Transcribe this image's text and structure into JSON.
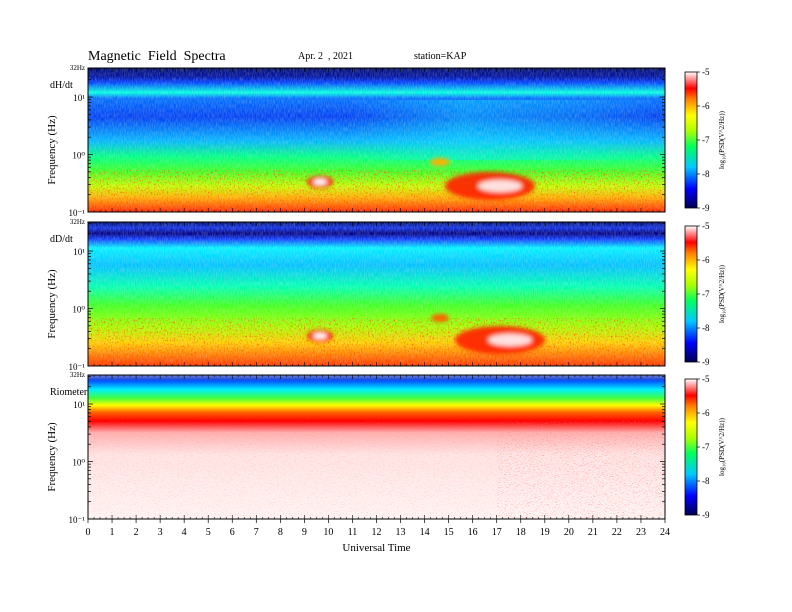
{
  "header": {
    "title": "Magnetic  Field  Spectra",
    "date": "Apr. 2  , 2021",
    "station": "station=KAP"
  },
  "chart_data": [
    {
      "type": "heatmap",
      "label": "dH/dt",
      "top_label": "32Hz",
      "ylabel": "Frequency  (Hz)",
      "xlabel": "",
      "xlim": [
        0,
        24
      ],
      "ylim": [
        0.1,
        32
      ],
      "ytick_labels": [
        "10⁻¹",
        "10⁰",
        "10¹"
      ],
      "colorbar": {
        "label": "log₁₀(PSD(V^2/Hz))",
        "range": [
          -9,
          -5
        ],
        "tick_labels": [
          "-5",
          "-6",
          "-7",
          "-8",
          "-9"
        ]
      }
    },
    {
      "type": "heatmap",
      "label": "dD/dt",
      "top_label": "32Hz",
      "ylabel": "Frequency  (Hz)",
      "xlabel": "",
      "xlim": [
        0,
        24
      ],
      "ylim": [
        0.1,
        32
      ],
      "ytick_labels": [
        "10⁻¹",
        "10⁰",
        "10¹"
      ],
      "colorbar": {
        "label": "log₁₀(PSD(V^2/Hz))",
        "range": [
          -9,
          -5
        ],
        "tick_labels": [
          "-5",
          "-6",
          "-7",
          "-8",
          "-9"
        ]
      }
    },
    {
      "type": "heatmap",
      "label": "Riometer",
      "top_label": "32Hz",
      "ylabel": "Frequency  (Hz)",
      "xlabel": "Universal Time",
      "xlim": [
        0,
        24
      ],
      "ylim": [
        0.1,
        32
      ],
      "ytick_labels": [
        "10⁻¹",
        "10⁰",
        "10¹"
      ],
      "colorbar": {
        "label": "log₁₀(PSD(V^2/Hz))",
        "range": [
          -9,
          -5
        ],
        "tick_labels": [
          "-5",
          "-6",
          "-7",
          "-8",
          "-9"
        ]
      }
    }
  ],
  "xaxis": {
    "ticks": [
      0,
      1,
      2,
      3,
      4,
      5,
      6,
      7,
      8,
      9,
      10,
      11,
      12,
      13,
      14,
      15,
      16,
      17,
      18,
      19,
      20,
      21,
      22,
      23,
      24
    ],
    "tick_labels": [
      "0",
      "1",
      "2",
      "3",
      "4",
      "5",
      "6",
      "7",
      "8",
      "9",
      "10",
      "11",
      "12",
      "13",
      "14",
      "15",
      "16",
      "17",
      "18",
      "19",
      "20",
      "21",
      "22",
      "23",
      "24"
    ]
  },
  "colors": {
    "deep_blue": "#000060",
    "blue": "#0020ff",
    "cyan": "#00e8ff",
    "green": "#20ff20",
    "yellow": "#ffff00",
    "red": "#ff0000",
    "white": "#ffffff"
  }
}
